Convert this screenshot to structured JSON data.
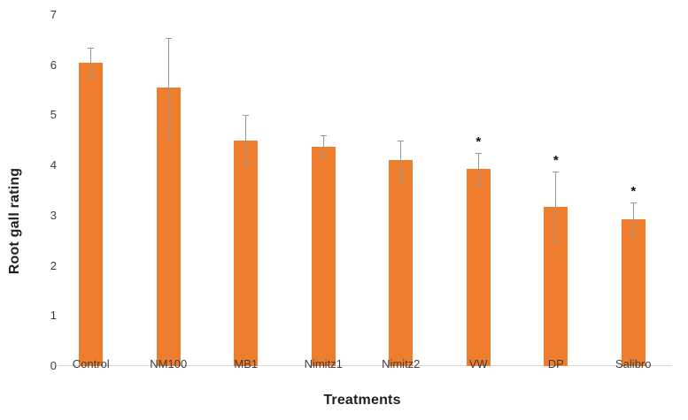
{
  "chart_data": {
    "type": "bar",
    "title": "",
    "xlabel": "Treatments",
    "ylabel": "Root gall rating",
    "categories": [
      "Control",
      "NM100",
      "MB1",
      "Nimitz1",
      "Nimitz2",
      "VW",
      "DP",
      "Salibro"
    ],
    "series": [
      {
        "name": "Root gall rating",
        "values": [
          6.05,
          5.55,
          4.5,
          4.38,
          4.1,
          3.93,
          3.17,
          2.93
        ],
        "error_bars": [
          0.29,
          1.0,
          0.5,
          0.23,
          0.4,
          0.32,
          0.71,
          0.34
        ],
        "significance": [
          "",
          "",
          "",
          "",
          "",
          "*",
          "*",
          "*"
        ]
      }
    ],
    "ylim": [
      0,
      7
    ],
    "yticks": [
      0,
      1,
      2,
      3,
      4,
      5,
      6,
      7
    ],
    "grid": false,
    "legend": "none",
    "colors": {
      "bar_fill": "#EF7D2E",
      "error_bar": "#979797",
      "axis_line": "#D9D9D9",
      "tick_text": "#3D3D3D",
      "title_text": "#1F1F1F",
      "significance_marker": "#111111",
      "background": "#FFFFFF"
    }
  }
}
